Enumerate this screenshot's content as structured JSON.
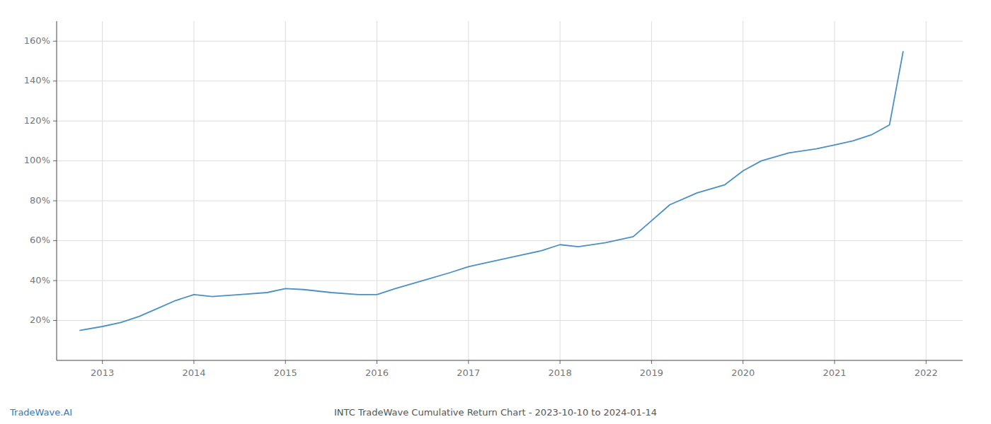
{
  "chart_data": {
    "type": "line",
    "title": "INTC TradeWave Cumulative Return Chart - 2023-10-10 to 2024-01-14",
    "annotations": [
      "TradeWave.AI"
    ],
    "x": [
      2012.75,
      2013.0,
      2013.2,
      2013.4,
      2013.6,
      2013.8,
      2014.0,
      2014.2,
      2014.5,
      2014.8,
      2015.0,
      2015.2,
      2015.5,
      2015.8,
      2016.0,
      2016.2,
      2016.5,
      2016.8,
      2017.0,
      2017.2,
      2017.5,
      2017.8,
      2018.0,
      2018.2,
      2018.5,
      2018.8,
      2019.0,
      2019.2,
      2019.5,
      2019.8,
      2020.0,
      2020.2,
      2020.5,
      2020.8,
      2021.0,
      2021.2,
      2021.4,
      2021.6,
      2021.75
    ],
    "values": [
      15,
      17,
      19,
      22,
      26,
      30,
      33,
      32,
      33,
      34,
      36,
      35.5,
      34,
      33,
      33,
      36,
      40,
      44,
      47,
      49,
      52,
      55,
      58,
      57,
      59,
      62,
      70,
      78,
      84,
      88,
      95,
      100,
      104,
      106,
      108,
      110,
      113,
      118,
      155
    ],
    "color": "#4a90c4",
    "xlim": [
      2012.5,
      2022.4
    ],
    "xticks": [
      2013,
      2014,
      2015,
      2016,
      2017,
      2018,
      2019,
      2020,
      2021,
      2022
    ],
    "ylim": [
      0,
      170
    ],
    "yticks": [
      {
        "value": 20,
        "label": "20%"
      },
      {
        "value": 40,
        "label": "40%"
      },
      {
        "value": 60,
        "label": "60%"
      },
      {
        "value": 80,
        "label": "80%"
      },
      {
        "value": 100,
        "label": "100%"
      },
      {
        "value": 120,
        "label": "120%"
      },
      {
        "value": 140,
        "label": "140%"
      },
      {
        "value": 160,
        "label": "160%"
      }
    ],
    "grid": true
  }
}
